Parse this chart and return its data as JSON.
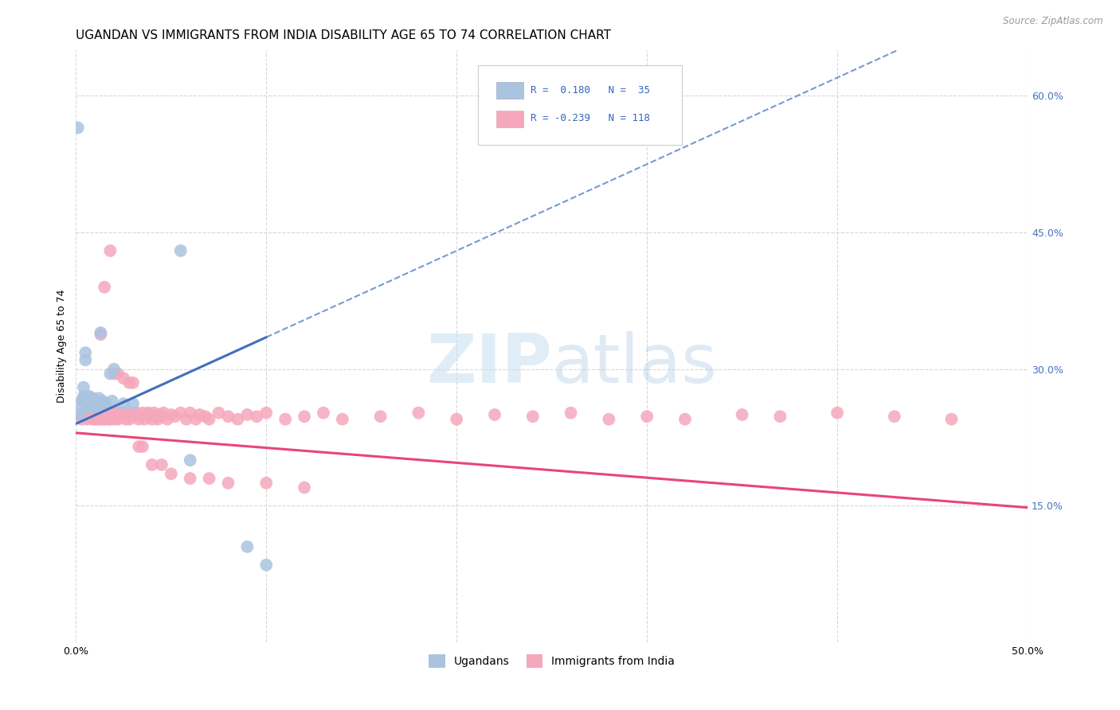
{
  "title": "UGANDAN VS IMMIGRANTS FROM INDIA DISABILITY AGE 65 TO 74 CORRELATION CHART",
  "source": "Source: ZipAtlas.com",
  "ylabel": "Disability Age 65 to 74",
  "xlim": [
    0.0,
    0.5
  ],
  "ylim": [
    0.0,
    0.65
  ],
  "x_ticks": [
    0.0,
    0.1,
    0.2,
    0.3,
    0.4,
    0.5
  ],
  "x_tick_labels": [
    "0.0%",
    "",
    "",
    "",
    "",
    "50.0%"
  ],
  "y_ticks_right": [
    0.6,
    0.45,
    0.3,
    0.15
  ],
  "y_tick_labels_right": [
    "60.0%",
    "45.0%",
    "30.0%",
    "15.0%"
  ],
  "ugandan_color": "#aac4e0",
  "india_color": "#f5a8bc",
  "ugandan_line_color": "#3f6fbe",
  "india_line_color": "#e8457a",
  "legend_label_uganda": "Ugandans",
  "legend_label_india": "Immigrants from India",
  "background_color": "#ffffff",
  "grid_color": "#d8d8d8",
  "title_fontsize": 11,
  "ugandan_x": [
    0.001,
    0.002,
    0.003,
    0.003,
    0.004,
    0.004,
    0.004,
    0.005,
    0.005,
    0.006,
    0.006,
    0.007,
    0.007,
    0.007,
    0.008,
    0.008,
    0.009,
    0.009,
    0.01,
    0.01,
    0.011,
    0.012,
    0.013,
    0.014,
    0.015,
    0.016,
    0.018,
    0.019,
    0.02,
    0.025,
    0.03,
    0.055,
    0.06,
    0.09,
    0.1
  ],
  "ugandan_y": [
    0.565,
    0.25,
    0.265,
    0.258,
    0.268,
    0.27,
    0.28,
    0.31,
    0.318,
    0.265,
    0.27,
    0.258,
    0.262,
    0.27,
    0.26,
    0.262,
    0.265,
    0.268,
    0.258,
    0.262,
    0.265,
    0.268,
    0.34,
    0.265,
    0.26,
    0.262,
    0.295,
    0.265,
    0.3,
    0.262,
    0.262,
    0.43,
    0.2,
    0.105,
    0.085
  ],
  "india_x": [
    0.002,
    0.003,
    0.004,
    0.005,
    0.006,
    0.006,
    0.007,
    0.007,
    0.008,
    0.008,
    0.009,
    0.009,
    0.01,
    0.01,
    0.011,
    0.011,
    0.012,
    0.012,
    0.013,
    0.013,
    0.014,
    0.014,
    0.015,
    0.015,
    0.016,
    0.016,
    0.017,
    0.017,
    0.018,
    0.018,
    0.019,
    0.019,
    0.02,
    0.02,
    0.021,
    0.021,
    0.022,
    0.022,
    0.023,
    0.023,
    0.024,
    0.025,
    0.025,
    0.026,
    0.026,
    0.027,
    0.027,
    0.028,
    0.029,
    0.03,
    0.031,
    0.032,
    0.033,
    0.034,
    0.035,
    0.036,
    0.037,
    0.038,
    0.039,
    0.04,
    0.041,
    0.042,
    0.043,
    0.044,
    0.045,
    0.046,
    0.048,
    0.05,
    0.052,
    0.055,
    0.058,
    0.06,
    0.063,
    0.065,
    0.068,
    0.07,
    0.075,
    0.08,
    0.085,
    0.09,
    0.095,
    0.1,
    0.11,
    0.12,
    0.13,
    0.14,
    0.16,
    0.18,
    0.2,
    0.22,
    0.24,
    0.26,
    0.28,
    0.3,
    0.32,
    0.35,
    0.37,
    0.4,
    0.43,
    0.46,
    0.013,
    0.015,
    0.018,
    0.02,
    0.022,
    0.025,
    0.028,
    0.03,
    0.033,
    0.035,
    0.04,
    0.045,
    0.05,
    0.06,
    0.07,
    0.08,
    0.1,
    0.12
  ],
  "india_y": [
    0.248,
    0.245,
    0.25,
    0.252,
    0.245,
    0.252,
    0.248,
    0.255,
    0.248,
    0.252,
    0.245,
    0.25,
    0.252,
    0.248,
    0.245,
    0.252,
    0.248,
    0.245,
    0.252,
    0.248,
    0.245,
    0.25,
    0.252,
    0.245,
    0.248,
    0.252,
    0.245,
    0.25,
    0.252,
    0.245,
    0.248,
    0.252,
    0.248,
    0.245,
    0.252,
    0.248,
    0.252,
    0.245,
    0.248,
    0.252,
    0.248,
    0.252,
    0.248,
    0.245,
    0.25,
    0.252,
    0.248,
    0.245,
    0.25,
    0.252,
    0.248,
    0.252,
    0.245,
    0.248,
    0.252,
    0.245,
    0.25,
    0.252,
    0.248,
    0.245,
    0.252,
    0.248,
    0.245,
    0.25,
    0.248,
    0.252,
    0.245,
    0.25,
    0.248,
    0.252,
    0.245,
    0.252,
    0.245,
    0.25,
    0.248,
    0.245,
    0.252,
    0.248,
    0.245,
    0.25,
    0.248,
    0.252,
    0.245,
    0.248,
    0.252,
    0.245,
    0.248,
    0.252,
    0.245,
    0.25,
    0.248,
    0.252,
    0.245,
    0.248,
    0.245,
    0.25,
    0.248,
    0.252,
    0.248,
    0.245,
    0.338,
    0.39,
    0.43,
    0.295,
    0.295,
    0.29,
    0.285,
    0.285,
    0.215,
    0.215,
    0.195,
    0.195,
    0.185,
    0.18,
    0.18,
    0.175,
    0.175,
    0.17
  ],
  "ugandan_trend_x0": 0.0,
  "ugandan_trend_y0": 0.24,
  "ugandan_trend_x1": 0.1,
  "ugandan_trend_y1": 0.335,
  "india_trend_x0": 0.0,
  "india_trend_y0": 0.23,
  "india_trend_x1": 0.5,
  "india_trend_y1": 0.148
}
